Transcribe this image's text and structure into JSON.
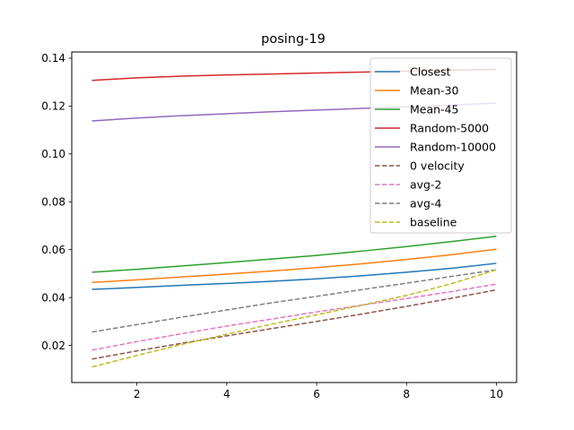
{
  "chart_data": {
    "type": "line",
    "title": "posing-19",
    "xlabel": "",
    "ylabel": "",
    "xlim": [
      0.55,
      10.45
    ],
    "ylim": [
      0.0045,
      0.1426
    ],
    "xticks": [
      2,
      4,
      6,
      8,
      10
    ],
    "yticks": [
      0.02,
      0.04,
      0.06,
      0.08,
      0.1,
      0.12,
      0.14
    ],
    "ytick_labels": [
      "0.02",
      "0.04",
      "0.06",
      "0.08",
      "0.10",
      "0.12",
      "0.14"
    ],
    "grid": false,
    "legend_position": "top-right",
    "x": [
      1,
      2,
      3,
      4,
      5,
      6,
      7,
      8,
      9,
      10
    ],
    "series": [
      {
        "name": "Closest",
        "color": "#1f77b4",
        "dash": "solid",
        "values": [
          0.0434,
          0.0442,
          0.0451,
          0.0459,
          0.0468,
          0.0478,
          0.0491,
          0.0506,
          0.0522,
          0.0543
        ]
      },
      {
        "name": "Mean-30",
        "color": "#ff7f0e",
        "dash": "solid",
        "values": [
          0.0463,
          0.0474,
          0.0486,
          0.0498,
          0.0511,
          0.0525,
          0.0541,
          0.0559,
          0.0579,
          0.0602
        ]
      },
      {
        "name": "Mean-45",
        "color": "#2ca02c",
        "dash": "solid",
        "values": [
          0.0506,
          0.0518,
          0.0532,
          0.0546,
          0.0561,
          0.0576,
          0.0594,
          0.0613,
          0.0634,
          0.0656
        ]
      },
      {
        "name": "Random-5000",
        "color": "#d62728",
        "dash": "solid",
        "values": [
          0.1307,
          0.1318,
          0.1325,
          0.133,
          0.1334,
          0.1338,
          0.1342,
          0.1346,
          0.135,
          0.1353
        ]
      },
      {
        "name": "Random-10000",
        "color": "#9467bd",
        "dash": "solid",
        "values": [
          0.1138,
          0.115,
          0.116,
          0.1168,
          0.1176,
          0.1183,
          0.119,
          0.1197,
          0.1204,
          0.1212
        ]
      },
      {
        "name": "0 velocity",
        "color": "#8c564b",
        "dash": "dashed",
        "values": [
          0.0143,
          0.0177,
          0.0209,
          0.024,
          0.027,
          0.03,
          0.0331,
          0.0363,
          0.0397,
          0.0432
        ]
      },
      {
        "name": "avg-2",
        "color": "#e377c2",
        "dash": "dashed",
        "values": [
          0.018,
          0.0216,
          0.0249,
          0.0281,
          0.031,
          0.034,
          0.0368,
          0.0396,
          0.0425,
          0.0456
        ]
      },
      {
        "name": "avg-4",
        "color": "#7f7f7f",
        "dash": "dashed",
        "values": [
          0.0256,
          0.0287,
          0.0318,
          0.0348,
          0.0378,
          0.0405,
          0.0433,
          0.046,
          0.0488,
          0.0516
        ]
      },
      {
        "name": "baseline",
        "color": "#bcbd22",
        "dash": "dashed",
        "values": [
          0.011,
          0.0158,
          0.0204,
          0.0247,
          0.0289,
          0.0328,
          0.0368,
          0.0409,
          0.0458,
          0.0516
        ]
      }
    ]
  }
}
